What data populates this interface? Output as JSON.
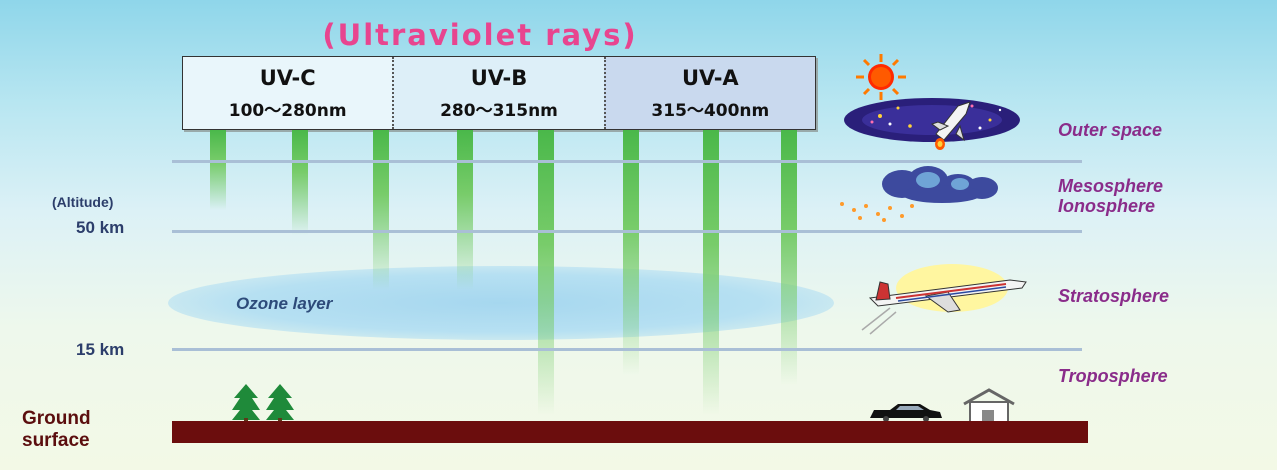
{
  "title": "(Ultraviolet rays)",
  "uv_bands": [
    {
      "name": "UV-C",
      "range": "100～280nm"
    },
    {
      "name": "UV-B",
      "range": "280～315nm"
    },
    {
      "name": "UV-A",
      "range": "315～400nm"
    }
  ],
  "altitude": {
    "label": "(Altitude)",
    "marks": [
      "50 km",
      "15 km"
    ]
  },
  "ozone_label": "Ozone layer",
  "layers": [
    "Outer space",
    "Mesosphere",
    "Ionosphere",
    "Stratosphere",
    "Troposphere"
  ],
  "ground": {
    "line1": "Ground",
    "line2": "surface"
  },
  "icons": [
    "sun-icon",
    "space-shuttle-icon",
    "cloud-icon",
    "airplane-icon",
    "tree-icon",
    "car-icon",
    "house-icon"
  ],
  "colors": {
    "title": "#e8458f",
    "layer_labels": "#8a2c8a",
    "ground": "#6b0d0d",
    "beam": "#4ab84a",
    "ozone": "#a6d7ef"
  }
}
